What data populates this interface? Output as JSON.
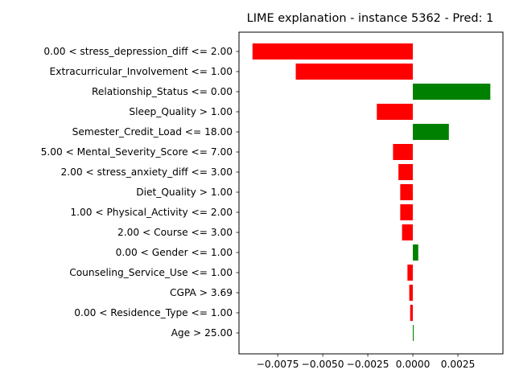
{
  "chart_data": {
    "type": "bar",
    "orientation": "horizontal",
    "title": "LIME explanation - instance 5362 - Pred: 1",
    "xlabel": "",
    "ylabel": "",
    "xlim": [
      -0.00965,
      0.005
    ],
    "xticks": [
      {
        "value": -0.0075,
        "label": "−0.0075"
      },
      {
        "value": -0.005,
        "label": "−0.0050"
      },
      {
        "value": -0.0025,
        "label": "−0.0025"
      },
      {
        "value": 0.0,
        "label": "0.0000"
      },
      {
        "value": 0.0025,
        "label": "0.0025"
      }
    ],
    "grid": false,
    "legend": "none",
    "positive_color": "#008000",
    "negative_color": "#ff0000",
    "categories": [
      "0.00 < stress_depression_diff <= 2.00",
      "Extracurricular_Involvement <= 1.00",
      "Relationship_Status <= 0.00",
      "Sleep_Quality > 1.00",
      "Semester_Credit_Load <= 18.00",
      "5.00 < Mental_Severity_Score <= 7.00",
      "2.00 < stress_anxiety_diff <= 3.00",
      "Diet_Quality > 1.00",
      "1.00 < Physical_Activity <= 2.00",
      "2.00 < Course <= 3.00",
      "0.00 < Gender <= 1.00",
      "Counseling_Service_Use <= 1.00",
      "CGPA > 3.69",
      "0.00 < Residence_Type <= 1.00",
      "Age > 25.00"
    ],
    "values": [
      -0.0089,
      -0.0065,
      0.0043,
      -0.002,
      0.002,
      -0.0011,
      -0.0008,
      -0.0007,
      -0.0007,
      -0.0006,
      0.0003,
      -0.0003,
      -0.0002,
      -0.00015,
      5e-05
    ]
  }
}
